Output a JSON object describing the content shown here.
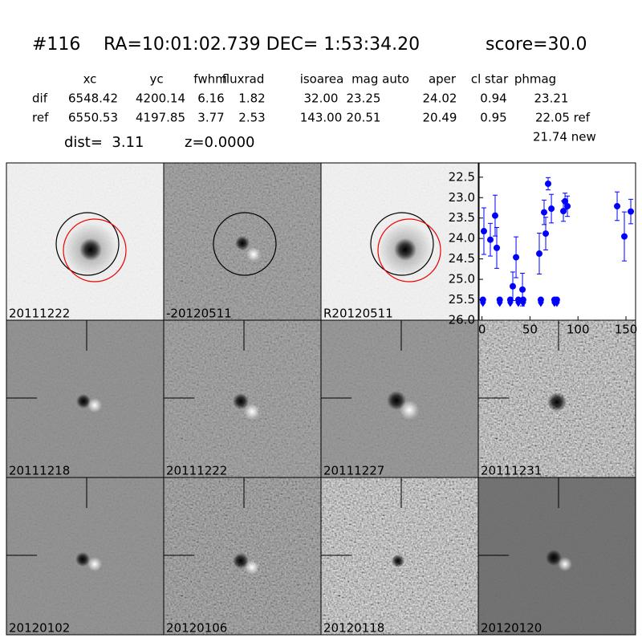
{
  "header": {
    "id": "#116",
    "coords": "RA=10:01:02.739 DEC= 1:53:34.20",
    "score": "score=30.0"
  },
  "table": {
    "headers": [
      "xc",
      "yc",
      "fwhm",
      "fluxrad",
      "isoarea",
      "mag auto",
      "aper",
      "cl star",
      "phmag"
    ],
    "rows": [
      {
        "label": "dif",
        "cells": [
          "6548.42",
          "4200.14",
          "6.16",
          "1.82",
          "32.00",
          "23.25",
          "24.02",
          "0.94",
          "23.21"
        ]
      },
      {
        "label": "ref",
        "cells": [
          "6550.53",
          "4197.85",
          "3.77",
          "2.53",
          "143.00",
          "20.51",
          "20.49",
          "0.95",
          "22.05 ref"
        ]
      }
    ],
    "extra": "21.74 new"
  },
  "dist": "dist=  3.11",
  "z": "z=0.0000",
  "panels": [
    {
      "label": "20111222",
      "color": "#000000"
    },
    {
      "label": "-20120511",
      "color": "#000000"
    },
    {
      "label": "R20120511",
      "color": "#000000"
    },
    {
      "label": "20111218",
      "color": "#000000"
    },
    {
      "label": "20111222",
      "color": "#ff0000"
    },
    {
      "label": "20111227",
      "color": "#000000"
    },
    {
      "label": "20111231",
      "color": "#000000"
    },
    {
      "label": "20120102",
      "color": "#000000"
    },
    {
      "label": "20120106",
      "color": "#000000"
    },
    {
      "label": "20120118",
      "color": "#000000"
    },
    {
      "label": "20120120",
      "color": "#000000"
    }
  ],
  "chart_data": {
    "type": "scatter",
    "xlim": [
      -3,
      160
    ],
    "ylim": [
      26.0,
      22.15
    ],
    "xticks": [
      0,
      50,
      100,
      150
    ],
    "yticks": [
      22.5,
      {
        "value": 23,
        "label": "23.0"
      },
      23.5,
      {
        "value": 24,
        "label": "24.0"
      },
      24.5,
      {
        "value": 25,
        "label": "25.0"
      },
      25.5,
      {
        "value": 26,
        "label": "26.0"
      }
    ],
    "series": [
      {
        "color": "#0000ff",
        "marker": "circle",
        "x": [
          2,
          8.7,
          13.7,
          15.4,
          32.1,
          35.5,
          42.2,
          59.7,
          64.7,
          66.4,
          68.9,
          72.3,
          84.8,
          86.5,
          89,
          140.8,
          148.3,
          155
        ],
        "values": [
          23.82,
          24.03,
          23.44,
          24.23,
          25.17,
          24.46,
          25.25,
          24.37,
          23.36,
          23.88,
          22.66,
          23.27,
          23.33,
          23.09,
          23.21,
          23.21,
          23.95,
          23.34
        ],
        "errors": [
          0.57,
          0.4,
          0.5,
          0.5,
          0.35,
          0.5,
          0.4,
          0.5,
          0.3,
          0.4,
          0.15,
          0.35,
          0.25,
          0.2,
          0.25,
          0.35,
          0.6,
          0.3
        ]
      },
      {
        "color": "#0000ff",
        "marker": "limit",
        "x": [
          1,
          18.5,
          29.5,
          37.9,
          42.9,
          61.3,
          75.5,
          78
        ],
        "values": [
          25.5,
          25.5,
          25.5,
          25.5,
          25.5,
          25.5,
          25.5,
          25.5
        ]
      }
    ]
  }
}
